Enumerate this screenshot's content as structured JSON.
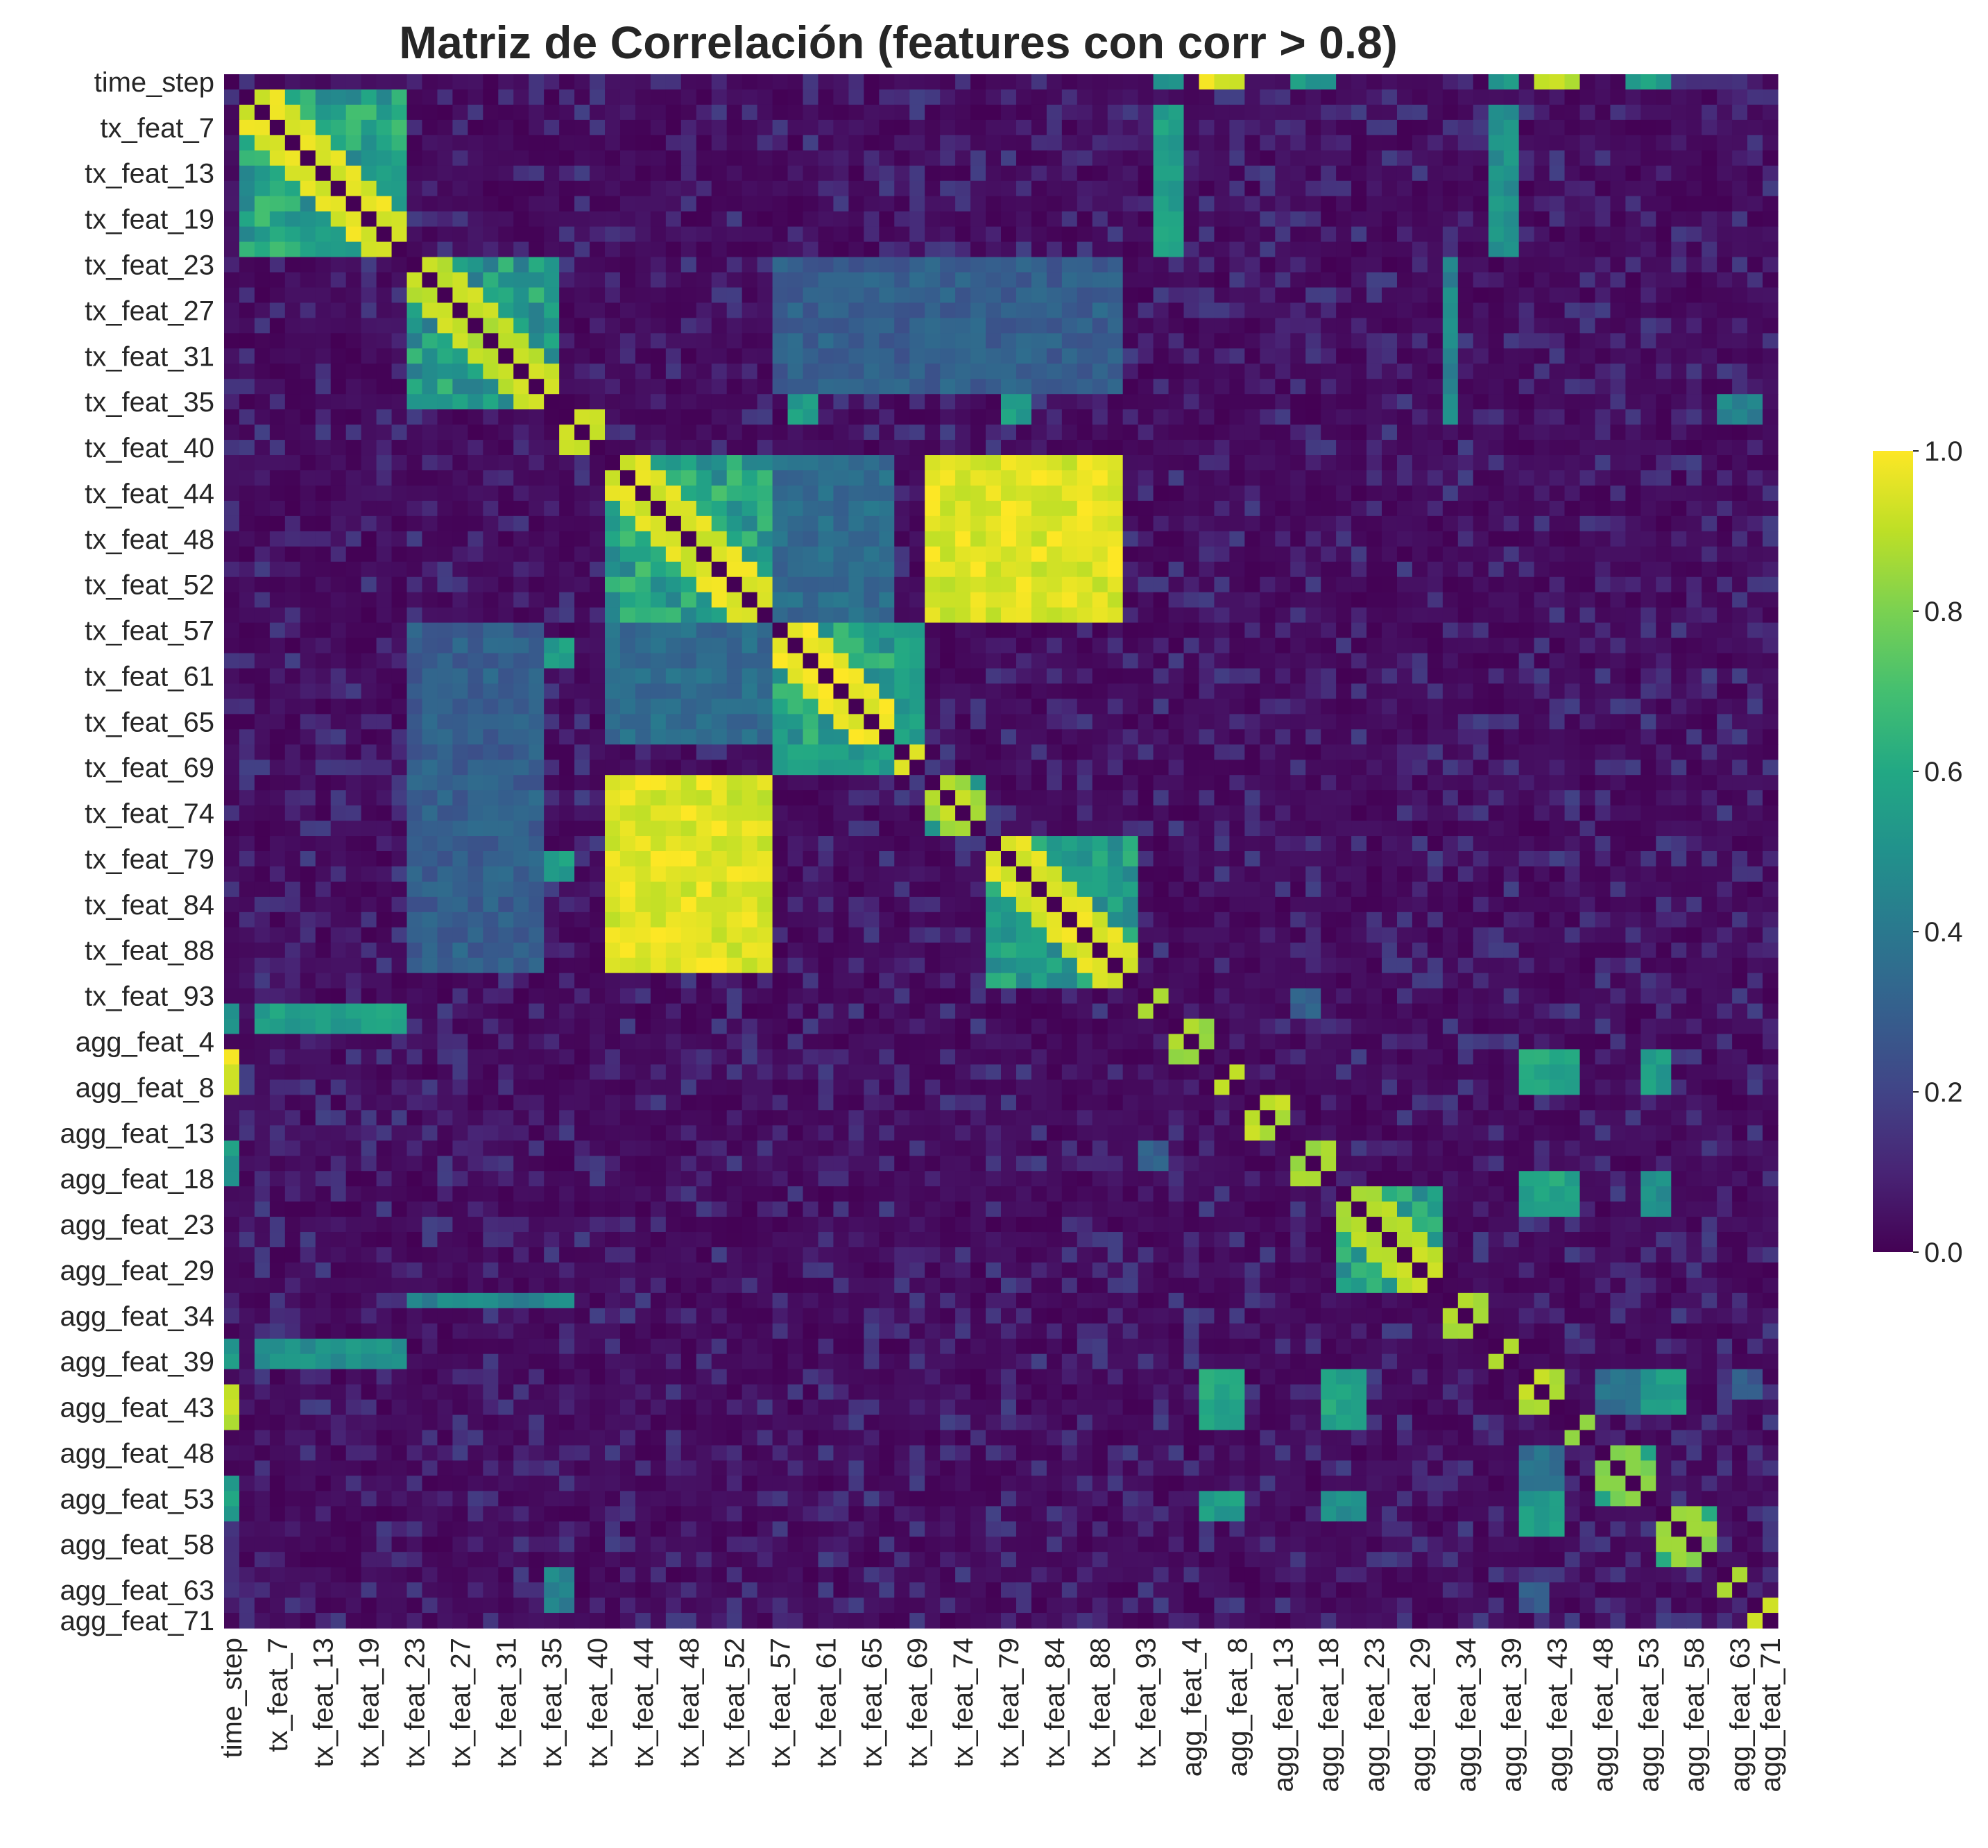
{
  "chart_data": {
    "type": "heatmap",
    "title": "Matriz de Correlación (features con corr > 0.8)",
    "xlabel": "",
    "ylabel": "",
    "colormap": "viridis",
    "value_range": [
      0.0,
      1.0
    ],
    "colorbar": {
      "ticks": [
        0.0,
        0.2,
        0.4,
        0.6,
        0.8,
        1.0
      ],
      "tick_labels": [
        "0.0",
        "0.2",
        "0.4",
        "0.6",
        "0.8",
        "1.0"
      ],
      "placement": "right"
    },
    "grid": false,
    "n_features": 102,
    "tick_labels": [
      "time_step",
      "tx_feat_7",
      "tx_feat_13",
      "tx_feat_19",
      "tx_feat_23",
      "tx_feat_27",
      "tx_feat_31",
      "tx_feat_35",
      "tx_feat_40",
      "tx_feat_44",
      "tx_feat_48",
      "tx_feat_52",
      "tx_feat_57",
      "tx_feat_61",
      "tx_feat_65",
      "tx_feat_69",
      "tx_feat_74",
      "tx_feat_79",
      "tx_feat_84",
      "tx_feat_88",
      "tx_feat_93",
      "agg_feat_4",
      "agg_feat_8",
      "agg_feat_13",
      "agg_feat_18",
      "agg_feat_23",
      "agg_feat_29",
      "agg_feat_34",
      "agg_feat_39",
      "agg_feat_43",
      "agg_feat_48",
      "agg_feat_53",
      "agg_feat_58",
      "agg_feat_63",
      "agg_feat_71"
    ],
    "tick_feature_indices": [
      0,
      3,
      6,
      9,
      12,
      15,
      18,
      21,
      24,
      27,
      30,
      33,
      36,
      39,
      42,
      45,
      48,
      51,
      54,
      57,
      60,
      63,
      66,
      69,
      72,
      75,
      78,
      81,
      84,
      87,
      90,
      93,
      96,
      99,
      101
    ],
    "blocks": [
      {
        "range": [
          1,
          11
        ],
        "value": 0.95
      },
      {
        "range": [
          12,
          21
        ],
        "value": 0.9
      },
      {
        "range": [
          22,
          24
        ],
        "value": 0.92
      },
      {
        "range": [
          25,
          35
        ],
        "value": 0.95
      },
      {
        "range": [
          36,
          43
        ],
        "value": 0.97
      },
      {
        "range": [
          44,
          45
        ],
        "value": 0.95
      },
      {
        "range": [
          46,
          49
        ],
        "value": 0.88
      },
      {
        "range": [
          50,
          59
        ],
        "value": 0.95
      },
      {
        "range": [
          60,
          61
        ],
        "value": 0.85
      },
      {
        "range": [
          62,
          64
        ],
        "value": 0.86
      },
      {
        "range": [
          65,
          66
        ],
        "value": 0.9
      },
      {
        "range": [
          67,
          69
        ],
        "value": 0.9
      },
      {
        "range": [
          70,
          72
        ],
        "value": 0.85
      },
      {
        "range": [
          73,
          79
        ],
        "value": 0.9
      },
      {
        "range": [
          80,
          82
        ],
        "value": 0.85
      },
      {
        "range": [
          83,
          84
        ],
        "value": 0.85
      },
      {
        "range": [
          85,
          87
        ],
        "value": 0.9
      },
      {
        "range": [
          88,
          89
        ],
        "value": 0.85
      },
      {
        "range": [
          90,
          93
        ],
        "value": 0.82
      },
      {
        "range": [
          94,
          97
        ],
        "value": 0.85
      },
      {
        "range": [
          98,
          99
        ],
        "value": 0.85
      },
      {
        "range": [
          100,
          101
        ],
        "value": 0.9
      }
    ],
    "links": [
      {
        "a": [
          0,
          0
        ],
        "b": [
          64,
          66
        ],
        "value": 0.95
      },
      {
        "a": [
          0,
          0
        ],
        "b": [
          86,
          88
        ],
        "value": 0.88
      },
      {
        "a": [
          0,
          0
        ],
        "b": [
          92,
          94
        ],
        "value": 0.55
      },
      {
        "a": [
          0,
          0
        ],
        "b": [
          70,
          72
        ],
        "value": 0.52
      },
      {
        "a": [
          0,
          0
        ],
        "b": [
          61,
          62
        ],
        "value": 0.55
      },
      {
        "a": [
          0,
          0
        ],
        "b": [
          83,
          84
        ],
        "value": 0.5
      },
      {
        "a": [
          2,
          11
        ],
        "b": [
          61,
          62
        ],
        "value": 0.55
      },
      {
        "a": [
          2,
          11
        ],
        "b": [
          83,
          84
        ],
        "value": 0.5
      },
      {
        "a": [
          12,
          22
        ],
        "b": [
          37,
          38
        ],
        "value": 0.55
      },
      {
        "a": [
          12,
          22
        ],
        "b": [
          80,
          80
        ],
        "value": 0.45
      },
      {
        "a": [
          25,
          35
        ],
        "b": [
          46,
          58
        ],
        "value": 0.95
      },
      {
        "a": [
          25,
          35
        ],
        "b": [
          36,
          43
        ],
        "value": 0.35
      },
      {
        "a": [
          36,
          43
        ],
        "b": [
          44,
          45
        ],
        "value": 0.55
      },
      {
        "a": [
          12,
          20
        ],
        "b": [
          36,
          58
        ],
        "value": 0.3
      },
      {
        "a": [
          64,
          66
        ],
        "b": [
          85,
          88
        ],
        "value": 0.6
      },
      {
        "a": [
          64,
          66
        ],
        "b": [
          93,
          94
        ],
        "value": 0.55
      },
      {
        "a": [
          72,
          74
        ],
        "b": [
          85,
          88
        ],
        "value": 0.58
      },
      {
        "a": [
          72,
          74
        ],
        "b": [
          93,
          94
        ],
        "value": 0.5
      },
      {
        "a": [
          85,
          87
        ],
        "b": [
          93,
          95
        ],
        "value": 0.55
      },
      {
        "a": [
          85,
          87
        ],
        "b": [
          90,
          92
        ],
        "value": 0.35
      },
      {
        "a": [
          21,
          22
        ],
        "b": [
          51,
          52
        ],
        "value": 0.55
      },
      {
        "a": [
          21,
          22
        ],
        "b": [
          98,
          100
        ],
        "value": 0.45
      },
      {
        "a": [
          60,
          61
        ],
        "b": [
          70,
          71
        ],
        "value": 0.3
      },
      {
        "a": [
          85,
          86
        ],
        "b": [
          99,
          100
        ],
        "value": 0.3
      }
    ]
  }
}
